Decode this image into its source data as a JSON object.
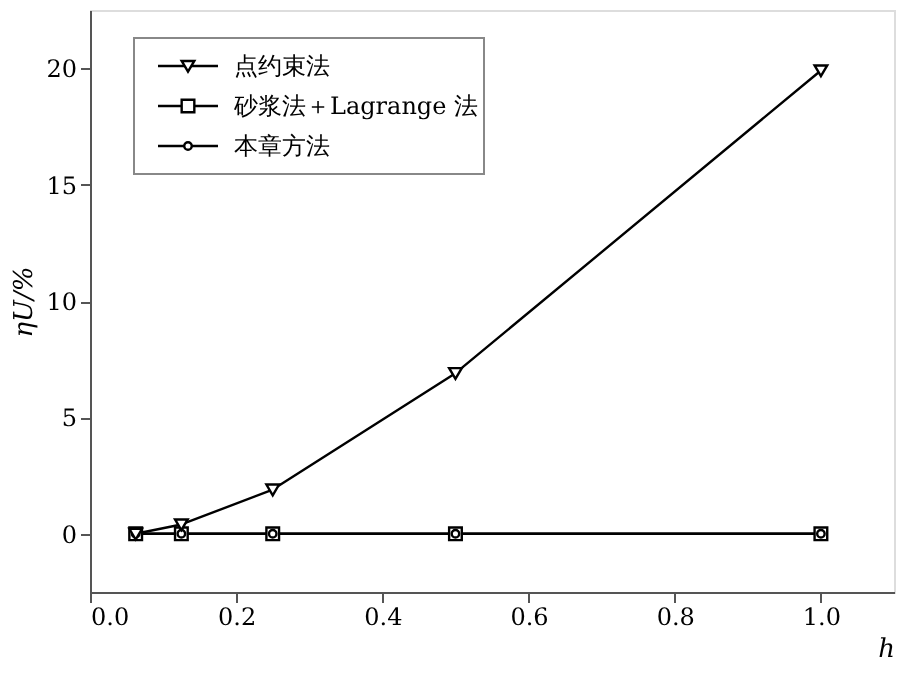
{
  "chart_data": {
    "type": "line",
    "xlabel": "h",
    "ylabel": "ηU/%",
    "x": [
      0.0625,
      0.125,
      0.25,
      0.5,
      1.0
    ],
    "series": [
      {
        "name": "点约束法",
        "color": "#000000",
        "marker": "triangle",
        "values": [
          0,
          0.4,
          1.9,
          6.9,
          19.9
        ]
      },
      {
        "name": "砂浆法＋Lagrange 法",
        "color": "#000000",
        "marker": "square",
        "values": [
          0,
          0,
          0,
          0,
          0
        ]
      },
      {
        "name": "本章方法",
        "color": "#000000",
        "marker": "circle",
        "values": [
          0,
          0,
          0,
          0,
          0
        ]
      }
    ],
    "xlim": [
      0,
      1.1
    ],
    "ylim": [
      -2.5,
      22.5
    ],
    "xticks": [
      {
        "value": 0,
        "label": "0.0"
      },
      {
        "value": 0.2,
        "label": "0.2"
      },
      {
        "value": 0.4,
        "label": "0.4"
      },
      {
        "value": 0.6,
        "label": "0.6"
      },
      {
        "value": 0.8,
        "label": "0.8"
      },
      {
        "value": 1.0,
        "label": "1.0"
      }
    ],
    "yticks": [
      0,
      5,
      10,
      15,
      20
    ],
    "legend": "top left",
    "grid": false,
    "line_style": "solid"
  }
}
